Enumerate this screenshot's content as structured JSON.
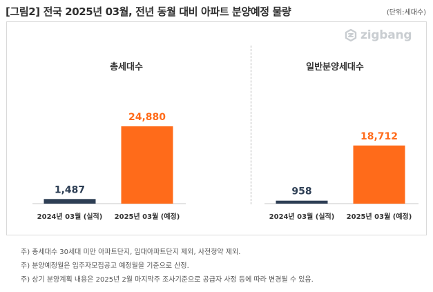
{
  "title": "[그림2] 전국 2025년 03월, 전년 동월 대비 아파트 분양예정 물량",
  "unit": "(단위:세대수)",
  "logo": {
    "text": "zigbang",
    "icon": "zigbang-logo-icon"
  },
  "colors": {
    "actual": "#2d3e54",
    "planned": "#ff6b1a"
  },
  "chart_data": [
    {
      "type": "bar",
      "title": "총세대수",
      "categories": [
        "2024년 03월 (실적)",
        "2025년 03월 (예정)"
      ],
      "values": [
        1487,
        24880
      ],
      "value_labels": [
        "1,487",
        "24,880"
      ],
      "ylim": [
        0,
        24880
      ]
    },
    {
      "type": "bar",
      "title": "일반분양세대수",
      "categories": [
        "2024년 03월 (실적)",
        "2025년 03월 (예정)"
      ],
      "values": [
        958,
        18712
      ],
      "value_labels": [
        "958",
        "18,712"
      ],
      "ylim": [
        0,
        24880
      ]
    }
  ],
  "footnotes": [
    "주) 총세대수 30세대 미만 아파트단지, 임대아파트단지 제외, 사전청약 제외.",
    "주) 분양예정월은 입주자모집공고 예정월을 기준으로 산정.",
    "주) 상기 분양계획 내용은 2025년 2월  마지막주 조사기준으로 공급자 사정 등에 따라 변경될 수 있음."
  ]
}
